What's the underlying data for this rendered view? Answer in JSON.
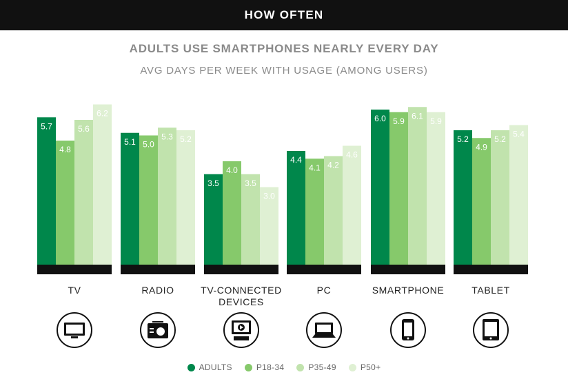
{
  "header": {
    "label": "HOW OFTEN"
  },
  "chart_data": {
    "type": "bar",
    "title": "ADULTS USE SMARTPHONES NEARLY EVERY DAY",
    "subtitle": "AVG DAYS PER WEEK WITH USAGE (AMONG USERS)",
    "categories": [
      "TV",
      "RADIO",
      "TV-CONNECTED DEVICES",
      "PC",
      "SMARTPHONE",
      "TABLET"
    ],
    "category_icons": [
      "tv-icon",
      "radio-icon",
      "tv-connected-device-icon",
      "laptop-icon",
      "smartphone-icon",
      "tablet-icon"
    ],
    "series": [
      {
        "name": "ADULTS",
        "color": "#00874b",
        "values": [
          5.7,
          5.1,
          3.5,
          4.4,
          6.0,
          5.2
        ]
      },
      {
        "name": "P18-34",
        "color": "#86c96b",
        "values": [
          4.8,
          5.0,
          4.0,
          4.1,
          5.9,
          4.9
        ]
      },
      {
        "name": "P35-49",
        "color": "#c1e3ad",
        "values": [
          5.6,
          5.3,
          3.5,
          4.2,
          6.1,
          5.2
        ]
      },
      {
        "name": "P50+",
        "color": "#dff0d3",
        "values": [
          6.2,
          5.2,
          3.0,
          4.6,
          5.9,
          5.4
        ]
      }
    ],
    "ylim": [
      0,
      7
    ],
    "xlabel": "",
    "ylabel": "",
    "grid": false,
    "legend_position": "bottom",
    "value_label_colors": {
      "dark": "#ffffff",
      "light": "#3a7a3a"
    }
  }
}
